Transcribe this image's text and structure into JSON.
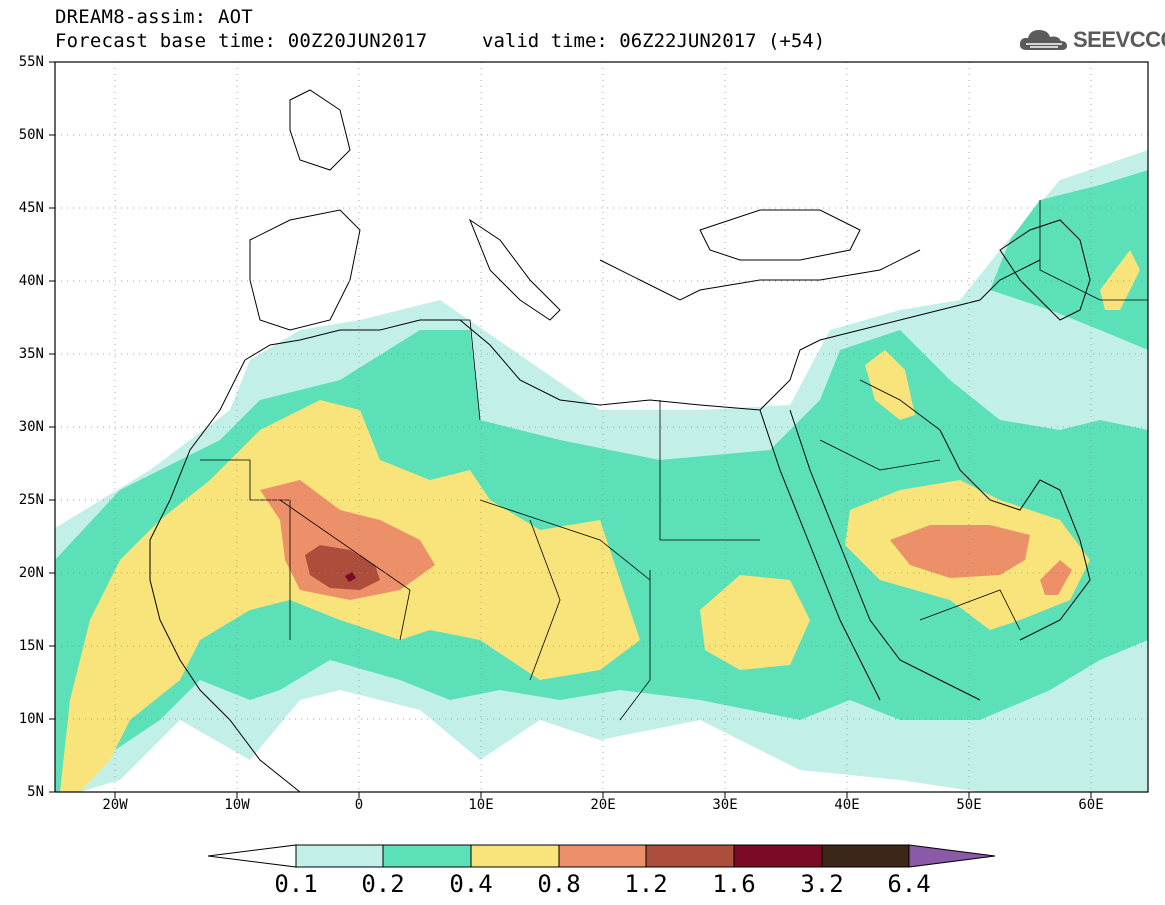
{
  "header": {
    "title_line1": "DREAM8-assim: AOT",
    "title_line2": "Forecast base time: 00Z20JUN2017",
    "valid_time": "valid time: 06Z22JUN2017 (+54)",
    "logo_text": "SEEVCCC"
  },
  "axes": {
    "lat_labels": [
      "55N",
      "50N",
      "45N",
      "40N",
      "35N",
      "30N",
      "25N",
      "20N",
      "15N",
      "10N",
      "5N"
    ],
    "lon_labels": [
      "20W",
      "10W",
      "0",
      "10E",
      "20E",
      "30E",
      "40E",
      "50E",
      "60E"
    ]
  },
  "colorbar": {
    "colors": [
      "#ffffff",
      "#c2f0e8",
      "#5ce0b8",
      "#f8e47a",
      "#ec906a",
      "#ad4e3c",
      "#7a0a25",
      "#3d2617",
      "#8a5aa8"
    ],
    "labels": [
      "0.1",
      "0.2",
      "0.4",
      "0.8",
      "1.2",
      "1.6",
      "3.2",
      "6.4"
    ]
  },
  "legend_colors": {
    "c01": "#c2f0e8",
    "c02": "#5ce0b8",
    "c04": "#f8e47a",
    "c08": "#ec906a",
    "c12": "#ad4e3c",
    "c16": "#7a0a25"
  }
}
